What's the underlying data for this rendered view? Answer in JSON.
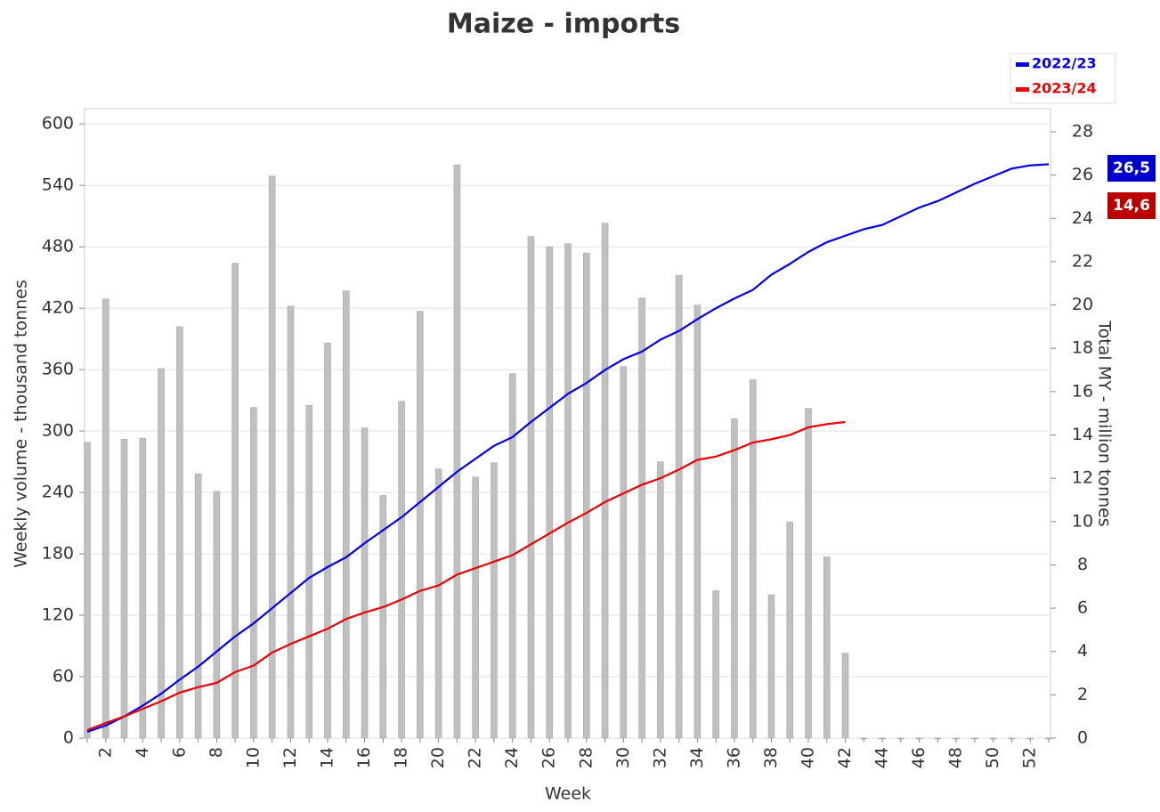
{
  "chart_data": {
    "type": "bar_line",
    "title": "Maize - imports",
    "x_label": "Week",
    "y_label": "Weekly volume - thousand tonnes",
    "y2_label": "Total MY - million tonnes",
    "categories": [
      null,
      "2",
      null,
      "4",
      null,
      "6",
      null,
      "8",
      null,
      "10",
      null,
      "12",
      null,
      "14",
      null,
      "16",
      null,
      "18",
      null,
      "20",
      null,
      "22",
      null,
      "24",
      null,
      "26",
      null,
      "28",
      null,
      "30",
      null,
      "32",
      null,
      "34",
      null,
      "36",
      null,
      "38",
      null,
      "40",
      null,
      "42",
      null,
      "44",
      null,
      "46",
      null,
      "48",
      null,
      "50",
      null,
      "52",
      null
    ],
    "bars": {
      "color": "#c0c0c0",
      "values": [
        289,
        429,
        292,
        293,
        361,
        402,
        258,
        241,
        464,
        323,
        549,
        422,
        325,
        386,
        437,
        303,
        237,
        329,
        417,
        263,
        560,
        255,
        269,
        356,
        490,
        480,
        483,
        474,
        503,
        363,
        430,
        270,
        452,
        423,
        144,
        312,
        350,
        140,
        211,
        322,
        177,
        83,
        0,
        0,
        0,
        0,
        0,
        0,
        0,
        0,
        0,
        0,
        0
      ]
    },
    "series": [
      {
        "name": "2022/23",
        "color": "#0000ee",
        "axis": "y2",
        "end_label": "26,5",
        "end_color": "#0000cc",
        "values": [
          0.29,
          0.58,
          1.0,
          1.5,
          2.05,
          2.7,
          3.3,
          4.0,
          4.7,
          5.3,
          6.0,
          6.7,
          7.4,
          7.9,
          8.35,
          9.0,
          9.6,
          10.2,
          10.9,
          11.6,
          12.3,
          12.9,
          13.5,
          13.9,
          14.6,
          15.25,
          15.9,
          16.4,
          17.0,
          17.5,
          17.85,
          18.4,
          18.8,
          19.35,
          19.85,
          20.3,
          20.7,
          21.4,
          21.9,
          22.45,
          22.9,
          23.2,
          23.5,
          23.7,
          24.1,
          24.5,
          24.8,
          25.2,
          25.6,
          25.95,
          26.3,
          26.45,
          26.5
        ]
      },
      {
        "name": "2023/24",
        "color": "#ee0000",
        "axis": "y2",
        "end_label": "14,6",
        "end_color": "#bb0000",
        "values": [
          0.37,
          0.7,
          1.0,
          1.35,
          1.7,
          2.1,
          2.35,
          2.55,
          3.05,
          3.35,
          3.95,
          4.35,
          4.7,
          5.05,
          5.5,
          5.8,
          6.05,
          6.4,
          6.8,
          7.05,
          7.55,
          7.85,
          8.15,
          8.45,
          8.95,
          9.45,
          9.95,
          10.4,
          10.9,
          11.3,
          11.7,
          12.0,
          12.4,
          12.85,
          13.0,
          13.3,
          13.65,
          13.8,
          14.0,
          14.35,
          14.5,
          14.6,
          null,
          null,
          null,
          null,
          null,
          null,
          null,
          null,
          null,
          null,
          null
        ]
      }
    ],
    "ylim": [
      0,
      615
    ],
    "yticks": [
      0,
      60,
      120,
      180,
      240,
      300,
      360,
      420,
      480,
      540,
      600
    ],
    "y2lim": [
      0,
      29.07
    ],
    "y2ticks": [
      0,
      2,
      4,
      6,
      8,
      10,
      12,
      14,
      16,
      18,
      20,
      22,
      24,
      26,
      28
    ],
    "grid": true,
    "legend": "top-right"
  }
}
